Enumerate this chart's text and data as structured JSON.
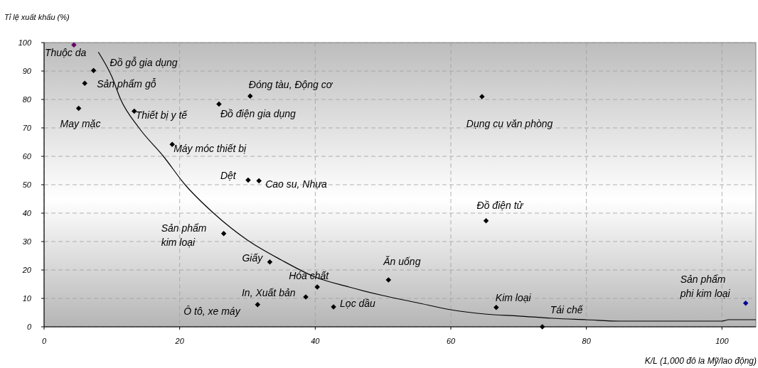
{
  "chart_data": {
    "type": "scatter",
    "ylabel": "Tỉ lệ xuất khẩu (%)",
    "xlabel": "K/L (1,000 đô la Mỹ/lao động)",
    "xlim": [
      0,
      105
    ],
    "xticks": [
      0,
      20,
      40,
      60,
      80,
      100
    ],
    "ylim": [
      0,
      100
    ],
    "yticks": [
      0,
      10,
      20,
      30,
      40,
      50,
      60,
      70,
      80,
      90,
      100
    ],
    "grid": true,
    "marker": "diamond",
    "series": [
      {
        "x": [
          4.4,
          7.3,
          6.0,
          5.1,
          13.3,
          18.9,
          25.8,
          30.4,
          64.6,
          30.1,
          31.7,
          26.5,
          33.3,
          31.5,
          38.6,
          40.3,
          42.7,
          50.8,
          65.2,
          66.7,
          73.5,
          103.5
        ],
        "values": [
          99.2,
          90.2,
          85.7,
          76.9,
          75.9,
          64.2,
          78.4,
          81.2,
          81.0,
          51.6,
          51.4,
          32.8,
          22.8,
          7.8,
          10.5,
          14.0,
          7.0,
          16.5,
          37.3,
          6.8,
          0,
          8.3
        ],
        "colors": [
          "#660066",
          "#000000",
          "#000000",
          "#000000",
          "#000000",
          "#000000",
          "#000000",
          "#000000",
          "#000000",
          "#000000",
          "#000000",
          "#000000",
          "#000000",
          "#000000",
          "#000000",
          "#000000",
          "#000000",
          "#000000",
          "#000000",
          "#000000",
          "#000000",
          "#000099"
        ]
      },
      {
        "type": "line",
        "color": "#000000",
        "marker": "none",
        "x": [
          8,
          10,
          11.3,
          14,
          17.6,
          20.8,
          25,
          30,
          35,
          40,
          45,
          50,
          55,
          60,
          65,
          70,
          75,
          80,
          85,
          100,
          101,
          105
        ],
        "values": [
          96.7,
          88,
          80,
          70,
          60,
          50,
          40,
          30.5,
          23.5,
          17.5,
          14,
          11,
          8.5,
          6,
          4.5,
          3.8,
          3,
          2.5,
          2,
          2,
          2.5,
          2.5
        ]
      }
    ],
    "annotations": [
      {
        "text": "Thuộc da",
        "x": 4.4,
        "y": 99.2
      },
      {
        "text": "Đồ gỗ gia dụng",
        "x": 7.3,
        "y": 90.2
      },
      {
        "text": "Sản phẩm gỗ",
        "x": 6.0,
        "y": 85.7
      },
      {
        "text": "May mặc",
        "x": 5.1,
        "y": 76.9
      },
      {
        "text": "Thiết bị y tế",
        "x": 13.3,
        "y": 75.9
      },
      {
        "text": "Máy móc thiết bị",
        "x": 18.9,
        "y": 64.2
      },
      {
        "text": "Đồ điện gia dụng",
        "x": 25.8,
        "y": 78.4
      },
      {
        "text": "Đóng tàu, Động cơ",
        "x": 30.4,
        "y": 81.2
      },
      {
        "text": "Dụng cụ văn phòng",
        "x": 64.6,
        "y": 81.0
      },
      {
        "text": "Dệt",
        "x": 30.1,
        "y": 51.6
      },
      {
        "text": "Cao su, Nhựa",
        "x": 31.7,
        "y": 51.4
      },
      {
        "text": "Sản phẩm\nkim loại",
        "x": 26.5,
        "y": 32.8
      },
      {
        "text": "Giấy",
        "x": 33.3,
        "y": 22.8
      },
      {
        "text": "Ô tô, xe máy",
        "x": 31.5,
        "y": 7.8
      },
      {
        "text": "In, Xuất bản",
        "x": 38.6,
        "y": 10.5
      },
      {
        "text": "Hóa chất",
        "x": 40.3,
        "y": 14.0
      },
      {
        "text": "Lọc dầu",
        "x": 42.7,
        "y": 7.0
      },
      {
        "text": "Ăn uống",
        "x": 50.8,
        "y": 16.5
      },
      {
        "text": "Đồ điện tử",
        "x": 65.2,
        "y": 37.3
      },
      {
        "text": "Kim loại",
        "x": 66.7,
        "y": 6.8
      },
      {
        "text": "Tái chế",
        "x": 73.5,
        "y": 0
      },
      {
        "text": "Sản phẩm\nphi kim loại",
        "x": 103.5,
        "y": 8.3
      }
    ]
  }
}
